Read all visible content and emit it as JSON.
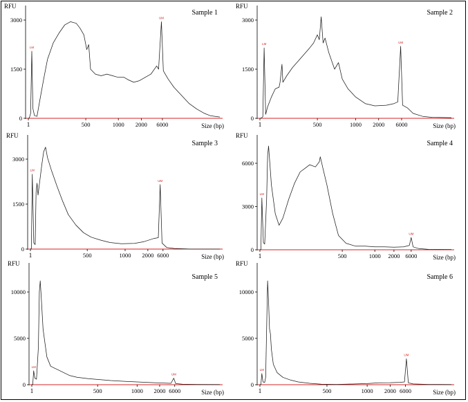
{
  "figure": {
    "axis_y_label": "RFU",
    "axis_x_label": "Size (bp)",
    "marker_labels": [
      "LM",
      "UM"
    ]
  },
  "chart_data": [
    {
      "type": "line",
      "title": "Sample 1",
      "ylabel": "RFU",
      "xlabel": "Size (bp)",
      "yticks": [
        0,
        1500,
        3000
      ],
      "ylim": [
        0,
        3300
      ],
      "xticks": [
        {
          "label": "1",
          "x": 0
        },
        {
          "label": "500",
          "x": 0.3
        },
        {
          "label": "1000",
          "x": 0.47
        },
        {
          "label": "2000",
          "x": 0.59
        },
        {
          "label": "6000",
          "x": 0.7
        }
      ],
      "series": [
        {
          "points": [
            [
              0,
              0
            ],
            [
              0.005,
              10
            ],
            [
              0.012,
              150
            ],
            [
              0.018,
              2050
            ],
            [
              0.024,
              300
            ],
            [
              0.032,
              80
            ],
            [
              0.045,
              60
            ],
            [
              0.06,
              550
            ],
            [
              0.08,
              1200
            ],
            [
              0.1,
              1800
            ],
            [
              0.13,
              2300
            ],
            [
              0.16,
              2600
            ],
            [
              0.19,
              2850
            ],
            [
              0.22,
              2950
            ],
            [
              0.25,
              2900
            ],
            [
              0.27,
              2750
            ],
            [
              0.29,
              2550
            ],
            [
              0.305,
              2100
            ],
            [
              0.315,
              2250
            ],
            [
              0.325,
              1500
            ],
            [
              0.35,
              1350
            ],
            [
              0.38,
              1300
            ],
            [
              0.41,
              1350
            ],
            [
              0.44,
              1300
            ],
            [
              0.47,
              1250
            ],
            [
              0.5,
              1250
            ],
            [
              0.52,
              1180
            ],
            [
              0.55,
              1100
            ],
            [
              0.58,
              1150
            ],
            [
              0.61,
              1250
            ],
            [
              0.64,
              1350
            ],
            [
              0.67,
              1600
            ],
            [
              0.68,
              1500
            ],
            [
              0.695,
              2950
            ],
            [
              0.705,
              1450
            ],
            [
              0.73,
              1200
            ],
            [
              0.76,
              950
            ],
            [
              0.8,
              700
            ],
            [
              0.84,
              450
            ],
            [
              0.88,
              280
            ],
            [
              0.92,
              150
            ],
            [
              0.95,
              80
            ],
            [
              1,
              40
            ]
          ]
        }
      ],
      "markers": [
        {
          "label": "LM",
          "x": 0.018,
          "y": 2050
        },
        {
          "label": "UM",
          "x": 0.695,
          "y": 2950
        }
      ]
    },
    {
      "type": "line",
      "title": "Sample 2",
      "ylabel": "RFU",
      "xlabel": "Size (bp)",
      "yticks": [
        0,
        1500,
        3000
      ],
      "ylim": [
        0,
        3300
      ],
      "xticks": [
        {
          "label": "1",
          "x": 0
        },
        {
          "label": "500",
          "x": 0.3
        },
        {
          "label": "1000",
          "x": 0.5
        },
        {
          "label": "2000",
          "x": 0.62
        },
        {
          "label": "6000",
          "x": 0.74
        }
      ],
      "series": [
        {
          "points": [
            [
              0,
              0
            ],
            [
              0.008,
              10
            ],
            [
              0.015,
              50
            ],
            [
              0.022,
              2150
            ],
            [
              0.03,
              120
            ],
            [
              0.04,
              350
            ],
            [
              0.06,
              650
            ],
            [
              0.08,
              900
            ],
            [
              0.1,
              950
            ],
            [
              0.105,
              1100
            ],
            [
              0.115,
              1650
            ],
            [
              0.12,
              1100
            ],
            [
              0.14,
              1300
            ],
            [
              0.17,
              1550
            ],
            [
              0.2,
              1750
            ],
            [
              0.23,
              1950
            ],
            [
              0.26,
              2150
            ],
            [
              0.28,
              2300
            ],
            [
              0.3,
              2550
            ],
            [
              0.31,
              2400
            ],
            [
              0.32,
              3100
            ],
            [
              0.33,
              2300
            ],
            [
              0.34,
              2450
            ],
            [
              0.36,
              2000
            ],
            [
              0.39,
              1500
            ],
            [
              0.41,
              1700
            ],
            [
              0.43,
              1200
            ],
            [
              0.46,
              900
            ],
            [
              0.5,
              650
            ],
            [
              0.55,
              450
            ],
            [
              0.6,
              380
            ],
            [
              0.66,
              400
            ],
            [
              0.7,
              450
            ],
            [
              0.72,
              500
            ],
            [
              0.735,
              2200
            ],
            [
              0.745,
              400
            ],
            [
              0.77,
              320
            ],
            [
              0.8,
              150
            ],
            [
              0.85,
              60
            ],
            [
              0.9,
              30
            ],
            [
              1,
              20
            ]
          ]
        }
      ],
      "markers": [
        {
          "label": "LM",
          "x": 0.022,
          "y": 2150
        },
        {
          "label": "UM",
          "x": 0.735,
          "y": 2200
        }
      ]
    },
    {
      "type": "line",
      "title": "Sample 3",
      "ylabel": "RFU",
      "xlabel": "Size (bp)",
      "yticks": [
        0,
        1500,
        3000
      ],
      "ylim": [
        0,
        3300
      ],
      "xticks": [
        {
          "label": "1",
          "x": 0
        },
        {
          "label": "500",
          "x": 0.3
        },
        {
          "label": "1000",
          "x": 0.5
        },
        {
          "label": "2000",
          "x": 0.62
        },
        {
          "label": "6000",
          "x": 0.7
        }
      ],
      "series": [
        {
          "points": [
            [
              0,
              0
            ],
            [
              0.005,
              20
            ],
            [
              0.01,
              2500
            ],
            [
              0.018,
              200
            ],
            [
              0.025,
              150
            ],
            [
              0.03,
              1900
            ],
            [
              0.035,
              2200
            ],
            [
              0.04,
              1800
            ],
            [
              0.06,
              2800
            ],
            [
              0.07,
              3250
            ],
            [
              0.08,
              3400
            ],
            [
              0.09,
              3050
            ],
            [
              0.11,
              2650
            ],
            [
              0.14,
              2100
            ],
            [
              0.17,
              1600
            ],
            [
              0.2,
              1150
            ],
            [
              0.24,
              800
            ],
            [
              0.28,
              550
            ],
            [
              0.32,
              400
            ],
            [
              0.37,
              300
            ],
            [
              0.42,
              220
            ],
            [
              0.48,
              180
            ],
            [
              0.55,
              190
            ],
            [
              0.6,
              250
            ],
            [
              0.65,
              350
            ],
            [
              0.675,
              380
            ],
            [
              0.685,
              2150
            ],
            [
              0.695,
              200
            ],
            [
              0.72,
              50
            ],
            [
              0.76,
              20
            ],
            [
              0.85,
              0
            ],
            [
              1,
              0
            ]
          ]
        }
      ],
      "markers": [
        {
          "label": "LM",
          "x": 0.01,
          "y": 2500
        },
        {
          "label": "UM",
          "x": 0.685,
          "y": 2150
        }
      ]
    },
    {
      "type": "line",
      "title": "Sample 4",
      "ylabel": "RFU",
      "xlabel": "Size (bp)",
      "yticks": [
        0,
        3000,
        6000
      ],
      "ylim": [
        0,
        7500
      ],
      "xticks": [
        {
          "label": "1",
          "x": 0
        },
        {
          "label": "500",
          "x": 0.43
        },
        {
          "label": "1000",
          "x": 0.6
        },
        {
          "label": "2000",
          "x": 0.7
        },
        {
          "label": "6000",
          "x": 0.79
        }
      ],
      "series": [
        {
          "points": [
            [
              0,
              0
            ],
            [
              0.005,
              30
            ],
            [
              0.01,
              3600
            ],
            [
              0.018,
              500
            ],
            [
              0.025,
              400
            ],
            [
              0.035,
              3500
            ],
            [
              0.04,
              6500
            ],
            [
              0.045,
              7200
            ],
            [
              0.05,
              6300
            ],
            [
              0.06,
              4500
            ],
            [
              0.08,
              2500
            ],
            [
              0.1,
              1700
            ],
            [
              0.12,
              2200
            ],
            [
              0.15,
              3500
            ],
            [
              0.18,
              4600
            ],
            [
              0.21,
              5400
            ],
            [
              0.24,
              5700
            ],
            [
              0.26,
              5900
            ],
            [
              0.29,
              5750
            ],
            [
              0.31,
              6100
            ],
            [
              0.315,
              6450
            ],
            [
              0.33,
              5600
            ],
            [
              0.35,
              4500
            ],
            [
              0.38,
              2500
            ],
            [
              0.41,
              1000
            ],
            [
              0.45,
              450
            ],
            [
              0.5,
              250
            ],
            [
              0.55,
              250
            ],
            [
              0.6,
              200
            ],
            [
              0.65,
              200
            ],
            [
              0.7,
              180
            ],
            [
              0.75,
              200
            ],
            [
              0.78,
              300
            ],
            [
              0.79,
              850
            ],
            [
              0.8,
              200
            ],
            [
              0.83,
              80
            ],
            [
              0.88,
              30
            ],
            [
              1,
              20
            ]
          ]
        }
      ],
      "markers": [
        {
          "label": "LM",
          "x": 0.01,
          "y": 3600
        },
        {
          "label": "UM",
          "x": 0.79,
          "y": 850
        }
      ]
    },
    {
      "type": "line",
      "title": "Sample 5",
      "ylabel": "RFU",
      "xlabel": "Size (bp)",
      "yticks": [
        0,
        5000,
        10000
      ],
      "ylim": [
        0,
        11500
      ],
      "xticks": [
        {
          "label": "1",
          "x": 0
        },
        {
          "label": "500",
          "x": 0.35
        },
        {
          "label": "1000",
          "x": 0.56
        },
        {
          "label": "2000",
          "x": 0.68
        },
        {
          "label": "6000",
          "x": 0.76
        }
      ],
      "series": [
        {
          "points": [
            [
              0,
              0
            ],
            [
              0.005,
              50
            ],
            [
              0.01,
              1500
            ],
            [
              0.016,
              700
            ],
            [
              0.025,
              600
            ],
            [
              0.035,
              4000
            ],
            [
              0.04,
              10000
            ],
            [
              0.045,
              11200
            ],
            [
              0.05,
              9500
            ],
            [
              0.06,
              6000
            ],
            [
              0.07,
              4500
            ],
            [
              0.08,
              3000
            ],
            [
              0.1,
              2000
            ],
            [
              0.12,
              1800
            ],
            [
              0.14,
              1600
            ],
            [
              0.17,
              1300
            ],
            [
              0.2,
              1000
            ],
            [
              0.24,
              800
            ],
            [
              0.3,
              650
            ],
            [
              0.36,
              550
            ],
            [
              0.42,
              450
            ],
            [
              0.5,
              350
            ],
            [
              0.58,
              280
            ],
            [
              0.66,
              200
            ],
            [
              0.74,
              150
            ],
            [
              0.755,
              700
            ],
            [
              0.765,
              120
            ],
            [
              0.8,
              60
            ],
            [
              0.88,
              30
            ],
            [
              1,
              20
            ]
          ]
        }
      ],
      "markers": [
        {
          "label": "LM",
          "x": 0.01,
          "y": 1500
        },
        {
          "label": "UM",
          "x": 0.755,
          "y": 700
        }
      ]
    },
    {
      "type": "line",
      "title": "Sample 6",
      "ylabel": "RFU",
      "xlabel": "Size (bp)",
      "yticks": [
        0,
        5000,
        10000
      ],
      "ylim": [
        0,
        11500
      ],
      "xticks": [
        {
          "label": "1",
          "x": 0
        },
        {
          "label": "500",
          "x": 0.35
        },
        {
          "label": "1000",
          "x": 0.56
        },
        {
          "label": "2000",
          "x": 0.68
        },
        {
          "label": "6000",
          "x": 0.76
        }
      ],
      "series": [
        {
          "points": [
            [
              0,
              0
            ],
            [
              0.005,
              40
            ],
            [
              0.01,
              1200
            ],
            [
              0.016,
              300
            ],
            [
              0.025,
              250
            ],
            [
              0.03,
              800
            ],
            [
              0.035,
              6000
            ],
            [
              0.04,
              11200
            ],
            [
              0.045,
              9000
            ],
            [
              0.05,
              6000
            ],
            [
              0.055,
              5500
            ],
            [
              0.06,
              3800
            ],
            [
              0.07,
              2200
            ],
            [
              0.09,
              1300
            ],
            [
              0.12,
              800
            ],
            [
              0.16,
              500
            ],
            [
              0.2,
              300
            ],
            [
              0.26,
              150
            ],
            [
              0.32,
              60
            ],
            [
              0.4,
              30
            ],
            [
              0.5,
              80
            ],
            [
              0.56,
              120
            ],
            [
              0.62,
              200
            ],
            [
              0.68,
              220
            ],
            [
              0.73,
              250
            ],
            [
              0.755,
              300
            ],
            [
              0.765,
              2800
            ],
            [
              0.775,
              200
            ],
            [
              0.8,
              80
            ],
            [
              0.88,
              30
            ],
            [
              1,
              20
            ]
          ]
        }
      ],
      "markers": [
        {
          "label": "LM",
          "x": 0.01,
          "y": 1200
        },
        {
          "label": "UM",
          "x": 0.765,
          "y": 2800
        }
      ]
    }
  ]
}
